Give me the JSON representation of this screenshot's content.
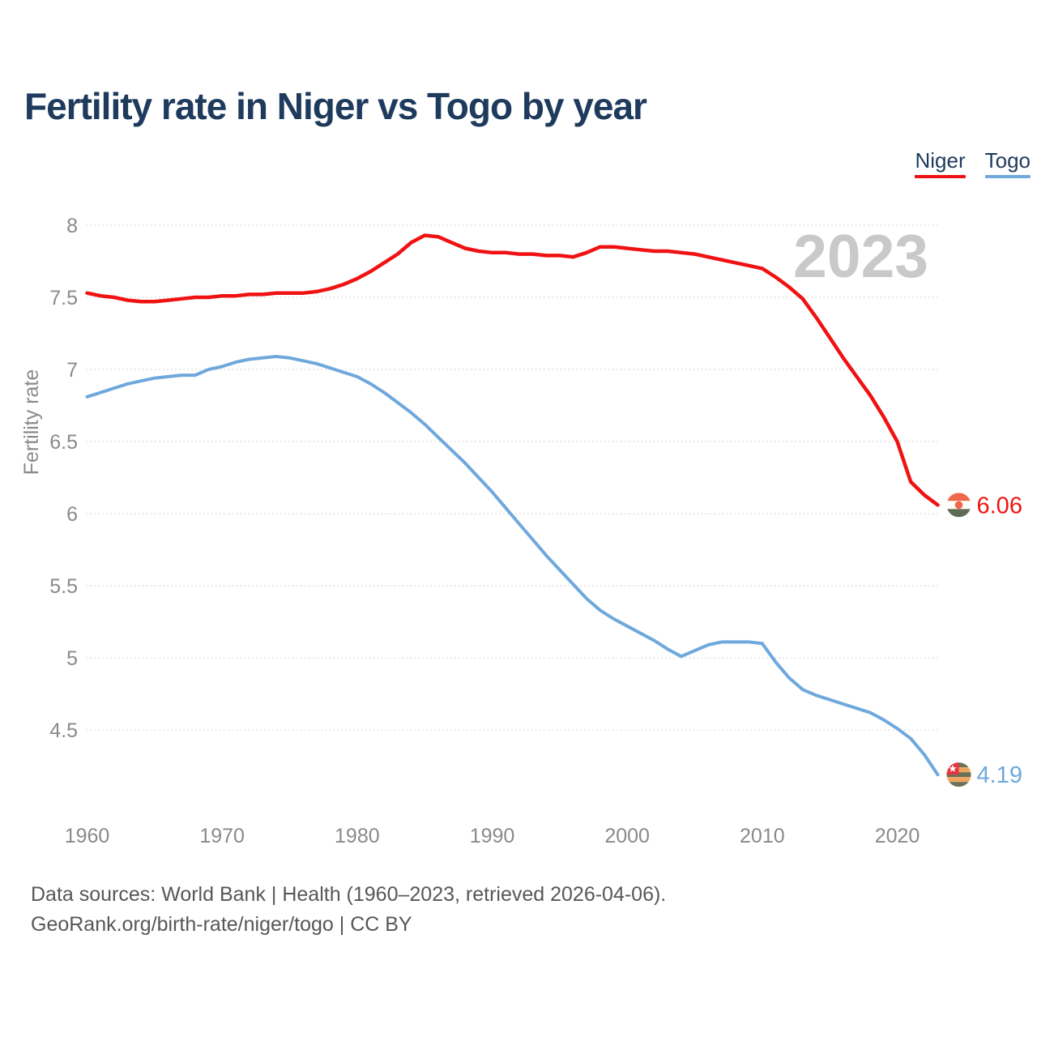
{
  "title": "Fertility rate in Niger vs Togo by year",
  "watermark": "2023",
  "footer": {
    "line1": "Data sources: World Bank | Health (1960–2023, retrieved 2026-04-06).",
    "line2": "GeoRank.org/birth-rate/niger/togo | CC BY"
  },
  "chart_data": {
    "type": "line",
    "title": "Fertility rate in Niger vs Togo by year",
    "xlabel": "",
    "ylabel": "Fertility rate",
    "grid": "horizontal",
    "legend_position": "top-right",
    "xlim": [
      1960,
      2023
    ],
    "ylim": [
      4.5,
      8
    ],
    "x_ticks": [
      1960,
      1970,
      1980,
      1990,
      2000,
      2010,
      2020
    ],
    "y_ticks": [
      4.5,
      5,
      5.5,
      6,
      6.5,
      7,
      7.5,
      8
    ],
    "x": [
      1960,
      1961,
      1962,
      1963,
      1964,
      1965,
      1966,
      1967,
      1968,
      1969,
      1970,
      1971,
      1972,
      1973,
      1974,
      1975,
      1976,
      1977,
      1978,
      1979,
      1980,
      1981,
      1982,
      1983,
      1984,
      1985,
      1986,
      1987,
      1988,
      1989,
      1990,
      1991,
      1992,
      1993,
      1994,
      1995,
      1996,
      1997,
      1998,
      1999,
      2000,
      2001,
      2002,
      2003,
      2004,
      2005,
      2006,
      2007,
      2008,
      2009,
      2010,
      2011,
      2012,
      2013,
      2014,
      2015,
      2016,
      2017,
      2018,
      2019,
      2020,
      2021,
      2022,
      2023
    ],
    "series": [
      {
        "name": "Niger",
        "color": "#f01212",
        "end_label": "6.06",
        "final_value": 6.06,
        "values": [
          7.53,
          7.51,
          7.5,
          7.48,
          7.47,
          7.47,
          7.48,
          7.49,
          7.5,
          7.5,
          7.51,
          7.51,
          7.52,
          7.52,
          7.53,
          7.53,
          7.53,
          7.54,
          7.56,
          7.59,
          7.63,
          7.68,
          7.74,
          7.8,
          7.88,
          7.93,
          7.92,
          7.88,
          7.84,
          7.82,
          7.81,
          7.81,
          7.8,
          7.8,
          7.79,
          7.79,
          7.78,
          7.81,
          7.85,
          7.85,
          7.84,
          7.83,
          7.82,
          7.82,
          7.81,
          7.8,
          7.78,
          7.76,
          7.74,
          7.72,
          7.7,
          7.64,
          7.57,
          7.49,
          7.36,
          7.22,
          7.08,
          6.95,
          6.82,
          6.67,
          6.5,
          6.22,
          6.13,
          6.06
        ]
      },
      {
        "name": "Togo",
        "color": "#6fa8dc",
        "end_label": "4.19",
        "final_value": 4.19,
        "values": [
          6.81,
          6.84,
          6.87,
          6.9,
          6.92,
          6.94,
          6.95,
          6.96,
          6.96,
          7.0,
          7.02,
          7.05,
          7.07,
          7.08,
          7.09,
          7.08,
          7.06,
          7.04,
          7.01,
          6.98,
          6.95,
          6.9,
          6.84,
          6.77,
          6.7,
          6.62,
          6.53,
          6.44,
          6.35,
          6.25,
          6.15,
          6.04,
          5.93,
          5.82,
          5.71,
          5.61,
          5.51,
          5.41,
          5.33,
          5.27,
          5.22,
          5.17,
          5.12,
          5.06,
          5.01,
          5.05,
          5.09,
          5.11,
          5.11,
          5.11,
          5.1,
          4.97,
          4.86,
          4.78,
          4.74,
          4.71,
          4.68,
          4.65,
          4.62,
          4.57,
          4.51,
          4.44,
          4.33,
          4.19
        ]
      }
    ]
  }
}
